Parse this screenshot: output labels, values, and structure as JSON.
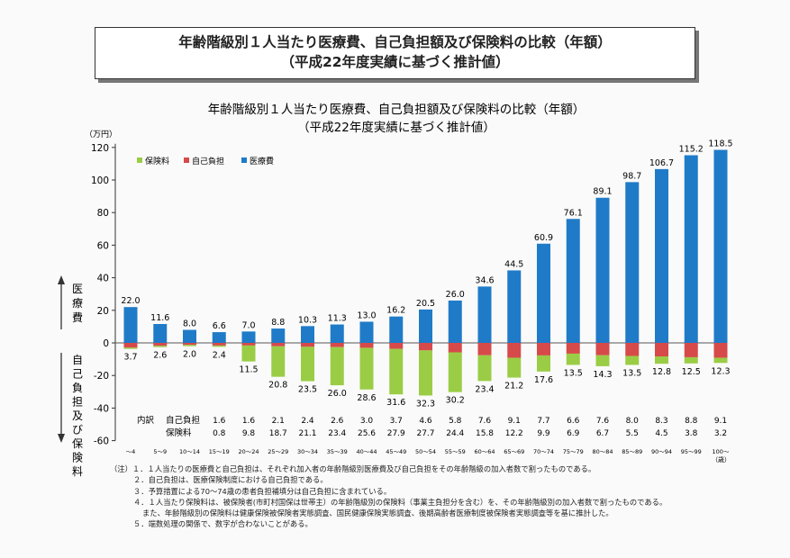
{
  "header": {
    "title_line1": "年齢階級別１人当たり医療費、自己負担額及び保険料の比較（年額）",
    "title_line2": "（平成22年度実績に基づく推計値）"
  },
  "chart_data": {
    "type": "bar",
    "title": "年齢階級別１人当たり医療費、自己負担額及び保険料の比較（年額）",
    "subtitle": "（平成22年度実績に基づく推計値）",
    "y_unit_label": "（万円）",
    "x_unit_label": "（歳）",
    "ylim": [
      -60,
      120
    ],
    "yticks": [
      -60,
      -40,
      -20,
      0,
      20,
      40,
      60,
      80,
      100,
      120
    ],
    "ylabel_upper": "医療費",
    "ylabel_lower": "自己負担及び保険料",
    "categories": [
      "～4",
      "5～9",
      "10～14",
      "15～19",
      "20～24",
      "25～29",
      "30～34",
      "35～39",
      "40～44",
      "45～49",
      "50～54",
      "55～59",
      "60～64",
      "65～69",
      "70～74",
      "75～79",
      "80～84",
      "85～89",
      "90～94",
      "95～99",
      "100～"
    ],
    "series": [
      {
        "name": "保険料",
        "color": "#9acd45",
        "values": [
          0.8,
          0.8,
          0.8,
          0.8,
          9.8,
          18.7,
          21.1,
          23.4,
          25.6,
          27.9,
          27.7,
          24.4,
          15.8,
          12.2,
          9.9,
          6.9,
          6.7,
          5.5,
          4.5,
          3.8,
          3.2
        ]
      },
      {
        "name": "自己負担",
        "color": "#d64a4a",
        "values": [
          2.9,
          1.8,
          1.2,
          1.6,
          1.6,
          2.1,
          2.4,
          2.6,
          3.0,
          3.7,
          4.6,
          5.8,
          7.6,
          9.1,
          7.7,
          6.6,
          7.6,
          8.0,
          8.3,
          8.8,
          9.1
        ]
      },
      {
        "name": "医療費",
        "color": "#1f7bc8",
        "values": [
          22.0,
          11.6,
          8.0,
          6.6,
          7.0,
          8.8,
          10.3,
          11.3,
          13.0,
          16.2,
          20.5,
          26.0,
          34.6,
          44.5,
          60.9,
          76.1,
          89.1,
          98.7,
          106.7,
          115.2,
          118.5
        ]
      }
    ],
    "total_medical_labels": [
      "22.0",
      "11.6",
      "8.0",
      "6.6",
      "7.0",
      "8.8",
      "10.3",
      "11.3",
      "13.0",
      "16.2",
      "20.5",
      "26.0",
      "34.6",
      "44.5",
      "60.9",
      "76.1",
      "89.1",
      "98.7",
      "106.7",
      "115.2",
      "118.5"
    ],
    "total_burden_labels": [
      "3.7",
      "2.6",
      "2.0",
      "2.4",
      "11.5",
      "20.8",
      "23.5",
      "26.0",
      "28.6",
      "31.6",
      "32.3",
      "30.2",
      "23.4",
      "21.2",
      "17.6",
      "13.5",
      "14.3",
      "13.5",
      "12.8",
      "12.5",
      "12.3"
    ],
    "breakdown": {
      "heading": "内訳",
      "row1_label": "自己負担",
      "row2_label": "保険料",
      "start_index": 4,
      "row1_values": [
        "1.6",
        "2.1",
        "2.4",
        "2.6",
        "3.0",
        "3.7",
        "4.6",
        "5.8",
        "7.6",
        "9.1",
        "7.7",
        "6.6",
        "7.6",
        "8.0",
        "8.3",
        "8.8",
        "9.1"
      ],
      "row2_values": [
        "9.8",
        "18.7",
        "21.1",
        "23.4",
        "25.6",
        "27.9",
        "27.7",
        "24.4",
        "15.8",
        "12.2",
        "9.9",
        "6.9",
        "6.7",
        "5.5",
        "4.5",
        "3.8",
        "3.2"
      ]
    },
    "legend": [
      "保険料",
      "自己負担",
      "医療費"
    ],
    "legend_position": "top-left"
  },
  "notes": [
    "（注）１．１人当たりの医療費と自己負担は、それぞれ加入者の年齢階級別医療費及び自己負担をその年齢階級の加入者数で割ったものである。",
    "２．自己負担は、医療保険制度における自己負担である。",
    "３．予算措置による70～74歳の患者負担補填分は自己負担に含まれている。",
    "４．１人当たり保険料は、被保険者(市町村国保は世帯主）の年齢階級別の保険料（事業主負担分を含む）を、その年齢階級別の加入者数で割ったものである。",
    "また、年齢階級別の保険料は健康保険被保険者実態調査、国民健康保険実態調査、後期高齢者医療制度被保険者実態調査等を基に推計した。",
    "５．端数処理の関係で、数字が合わないことがある。"
  ]
}
